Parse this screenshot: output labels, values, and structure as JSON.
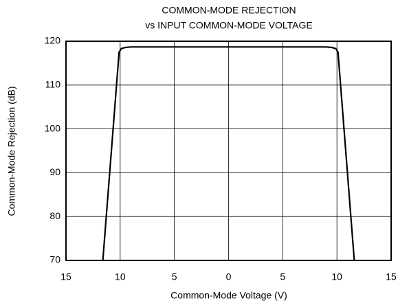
{
  "chart_data": {
    "type": "line",
    "title": "COMMON-MODE REJECTION",
    "subtitle": "vs INPUT COMMON-MODE VOLTAGE",
    "x_label": "Common-Mode Voltage (V)",
    "y_label": "Common-Mode Rejection (dB)",
    "x": [
      -11.6,
      -10.1,
      -9.9,
      -9.5,
      -9,
      9,
      9.5,
      9.9,
      10.1,
      11.6
    ],
    "values": [
      70,
      117.5,
      118.3,
      118.6,
      118.7,
      118.7,
      118.6,
      118.3,
      117.5,
      70
    ],
    "color": "#000000",
    "xlim": [
      -15,
      15
    ],
    "xticks": [
      {
        "value": -15,
        "label": "15"
      },
      {
        "value": -10,
        "label": "10"
      },
      {
        "value": -5,
        "label": "5"
      },
      0,
      5,
      10,
      15
    ],
    "ylim": [
      70,
      120
    ],
    "yticks": [
      70,
      80,
      90,
      100,
      110,
      120
    ],
    "grid": true
  }
}
